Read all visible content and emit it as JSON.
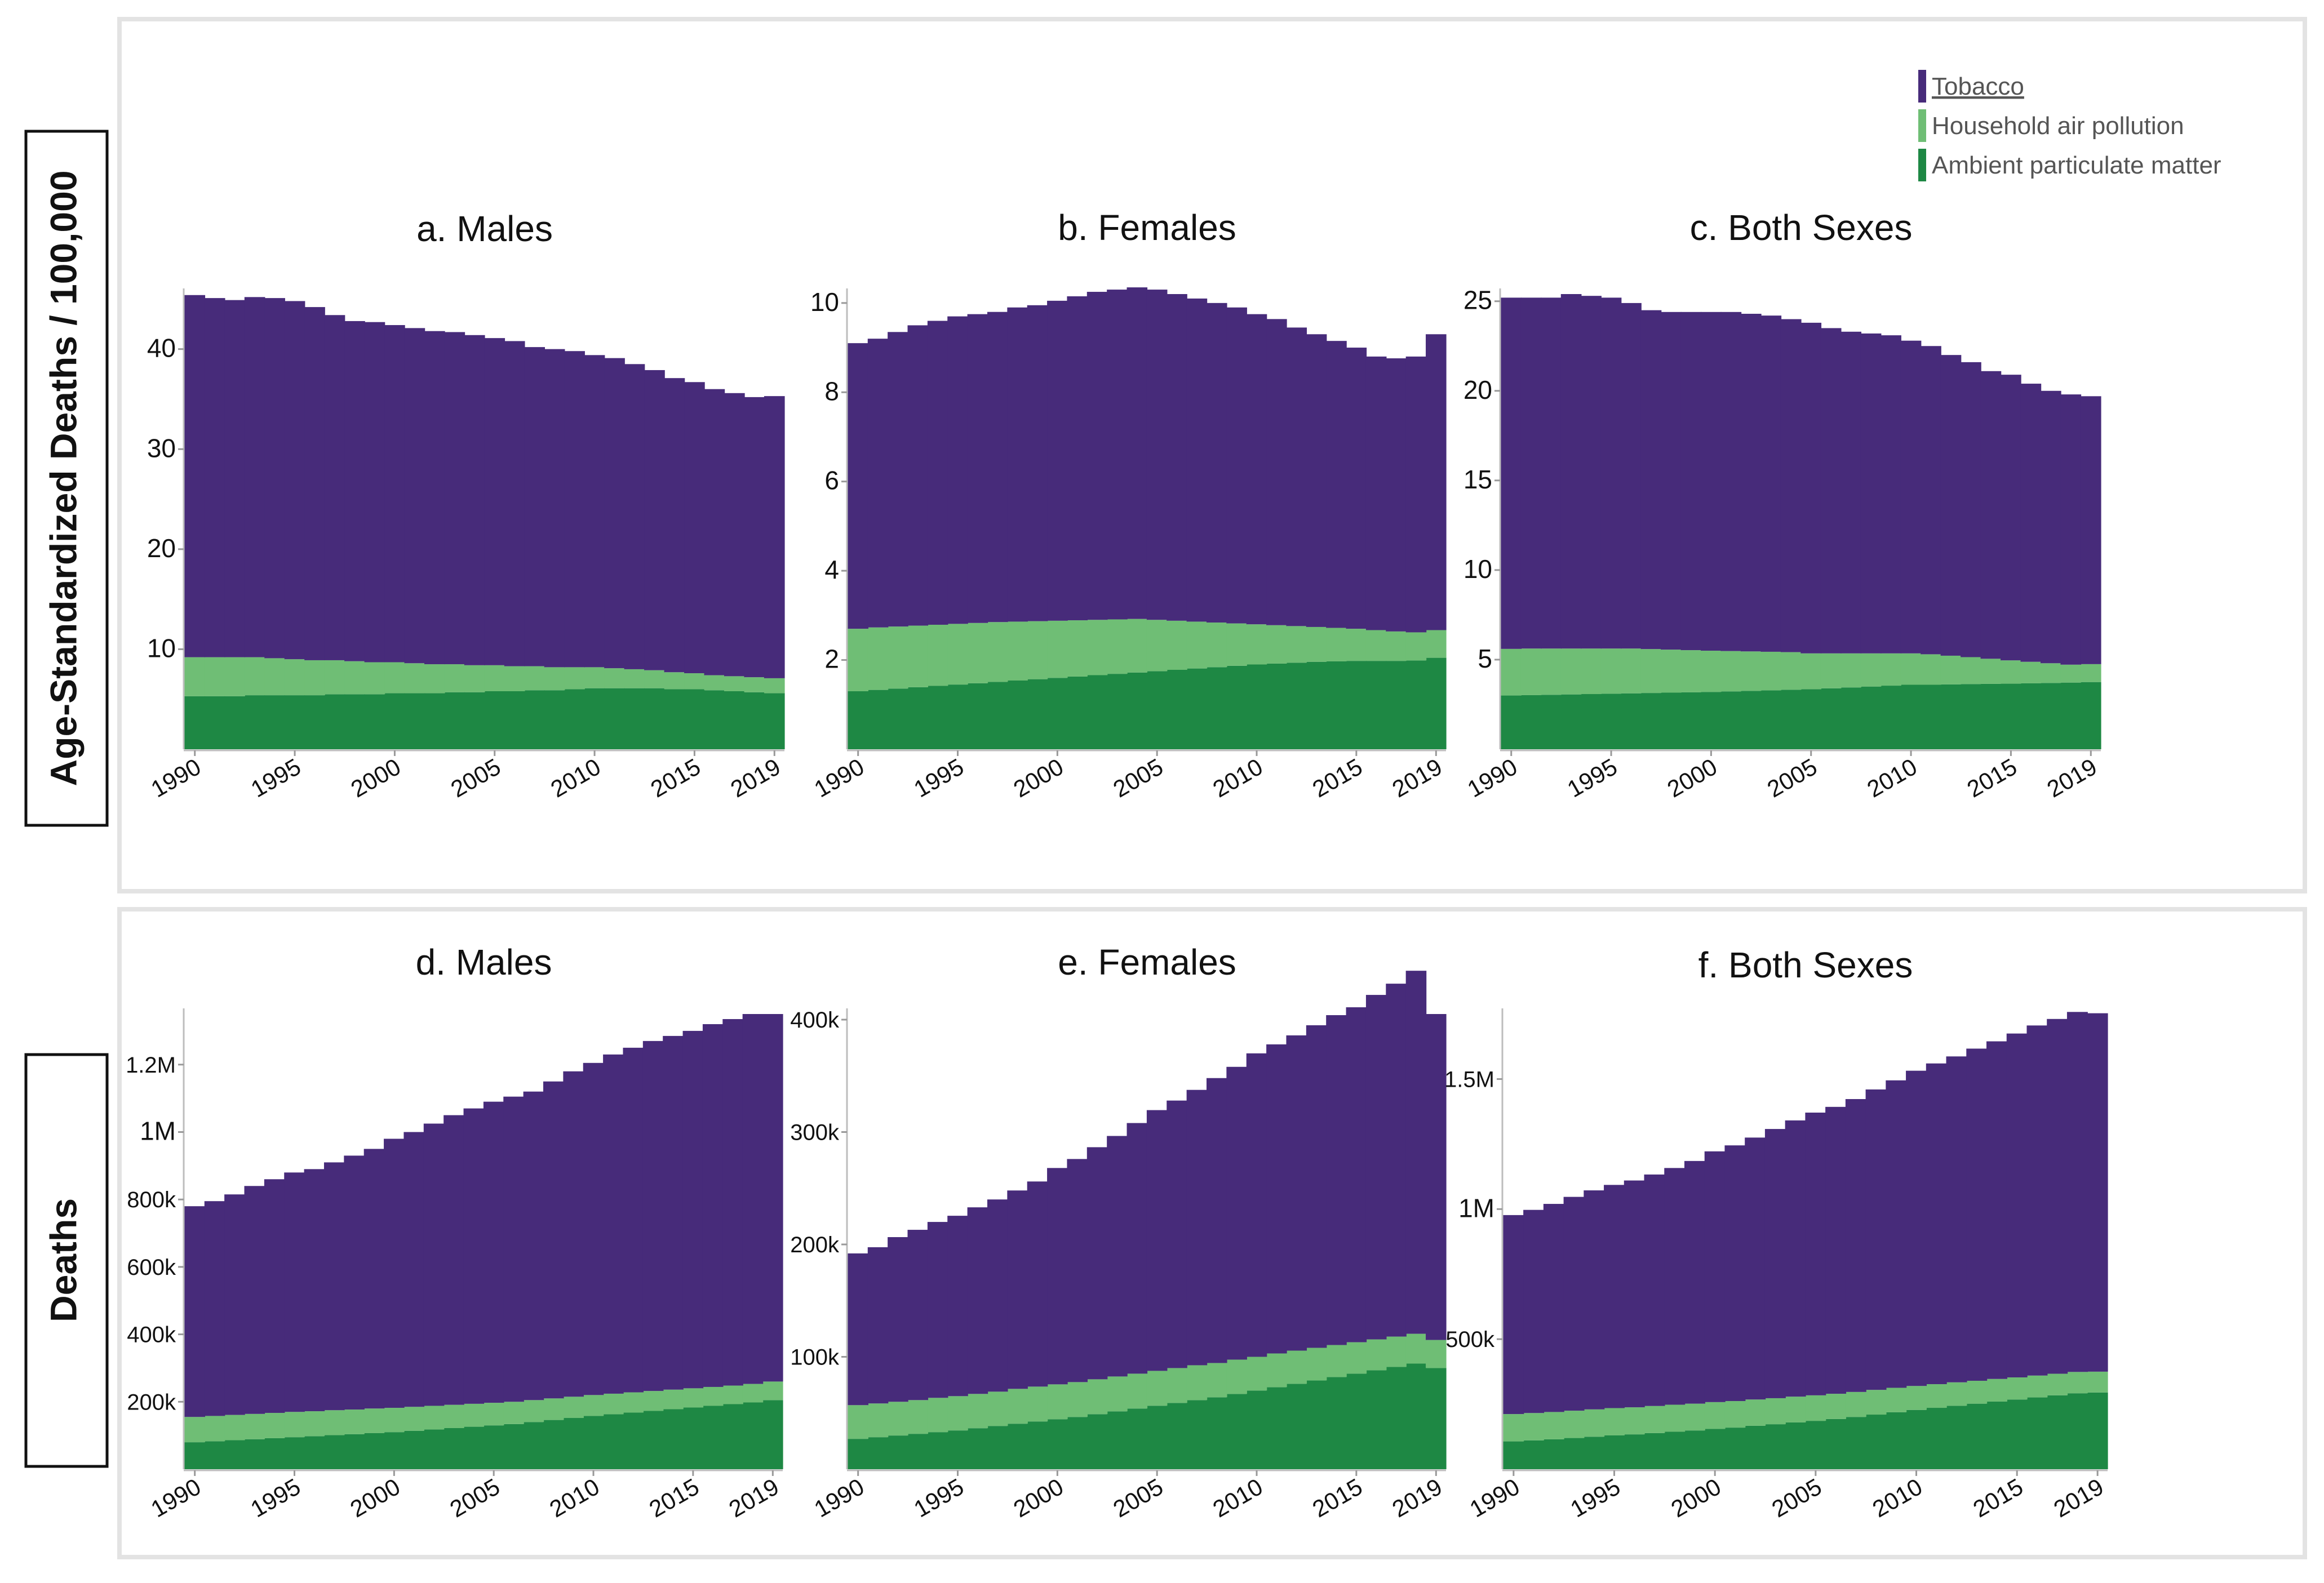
{
  "colors": {
    "tobacco": "#472b7a",
    "household": "#6fbe75",
    "ambient": "#1e8844",
    "panel_border": "#e3e3e3",
    "axis": "#bdbdbd",
    "text": "#111111",
    "legend_text": "#555555"
  },
  "legend": {
    "items": [
      {
        "label": "Tobacco",
        "color_key": "tobacco",
        "underline": true
      },
      {
        "label": "Household air pollution",
        "color_key": "household",
        "underline": false
      },
      {
        "label": "Ambient particulate matter",
        "color_key": "ambient",
        "underline": false
      }
    ]
  },
  "row_labels": {
    "top": "Age-Standardized Deaths / 100,000",
    "bottom": "Deaths"
  },
  "chart_data": [
    {
      "id": "a",
      "type": "area",
      "title": "a. Males",
      "row": "top",
      "x": [
        1990,
        1991,
        1992,
        1993,
        1994,
        1995,
        1996,
        1997,
        1998,
        1999,
        2000,
        2001,
        2002,
        2003,
        2004,
        2005,
        2006,
        2007,
        2008,
        2009,
        2010,
        2011,
        2012,
        2013,
        2014,
        2015,
        2016,
        2017,
        2018,
        2019
      ],
      "x_ticks": [
        1990,
        1995,
        2000,
        2005,
        2010,
        2015,
        2019
      ],
      "ylim": [
        0,
        45.5
      ],
      "y_ticks": [
        {
          "value": 10,
          "label": "10"
        },
        {
          "value": 20,
          "label": "20"
        },
        {
          "value": 30,
          "label": "30"
        },
        {
          "value": 40,
          "label": "40"
        }
      ],
      "series": [
        {
          "name": "Ambient particulate matter",
          "color_key": "ambient",
          "values": [
            5.3,
            5.3,
            5.3,
            5.4,
            5.4,
            5.4,
            5.4,
            5.5,
            5.5,
            5.5,
            5.6,
            5.6,
            5.6,
            5.7,
            5.7,
            5.8,
            5.8,
            5.9,
            5.9,
            6.0,
            6.1,
            6.1,
            6.1,
            6.1,
            6.0,
            6.0,
            5.9,
            5.8,
            5.7,
            5.6
          ]
        },
        {
          "name": "Household air pollution",
          "color_key": "household",
          "values": [
            3.9,
            3.9,
            3.9,
            3.8,
            3.7,
            3.6,
            3.5,
            3.4,
            3.3,
            3.2,
            3.1,
            3.0,
            2.9,
            2.8,
            2.7,
            2.6,
            2.5,
            2.4,
            2.3,
            2.2,
            2.1,
            2.0,
            1.9,
            1.8,
            1.7,
            1.6,
            1.5,
            1.5,
            1.5,
            1.5
          ]
        },
        {
          "name": "Tobacco",
          "color_key": "tobacco",
          "values": [
            36.2,
            35.9,
            35.7,
            36.0,
            36.0,
            35.8,
            35.3,
            34.5,
            34.0,
            34.0,
            33.7,
            33.5,
            33.3,
            33.2,
            33.0,
            32.7,
            32.5,
            31.9,
            31.8,
            31.6,
            31.2,
            31.0,
            30.5,
            30.0,
            29.4,
            29.1,
            28.6,
            28.3,
            28.0,
            28.2
          ]
        }
      ]
    },
    {
      "id": "b",
      "type": "area",
      "title": "b. Females",
      "row": "top",
      "x": [
        1990,
        1991,
        1992,
        1993,
        1994,
        1995,
        1996,
        1997,
        1998,
        1999,
        2000,
        2001,
        2002,
        2003,
        2004,
        2005,
        2006,
        2007,
        2008,
        2009,
        2010,
        2011,
        2012,
        2013,
        2014,
        2015,
        2016,
        2017,
        2018,
        2019
      ],
      "x_ticks": [
        1990,
        1995,
        2000,
        2005,
        2010,
        2015,
        2019
      ],
      "ylim": [
        0,
        10.2
      ],
      "y_ticks": [
        {
          "value": 2,
          "label": "2"
        },
        {
          "value": 4,
          "label": "4"
        },
        {
          "value": 6,
          "label": "6"
        },
        {
          "value": 8,
          "label": "8"
        },
        {
          "value": 10,
          "label": "10"
        }
      ],
      "series": [
        {
          "name": "Ambient particulate matter",
          "color_key": "ambient",
          "values": [
            1.3,
            1.33,
            1.36,
            1.39,
            1.42,
            1.45,
            1.48,
            1.51,
            1.54,
            1.57,
            1.6,
            1.63,
            1.66,
            1.69,
            1.72,
            1.75,
            1.78,
            1.81,
            1.84,
            1.87,
            1.9,
            1.92,
            1.94,
            1.96,
            1.97,
            1.98,
            1.98,
            1.98,
            1.99,
            2.05
          ]
        },
        {
          "name": "Household air pollution",
          "color_key": "household",
          "values": [
            1.4,
            1.4,
            1.39,
            1.38,
            1.37,
            1.36,
            1.35,
            1.34,
            1.32,
            1.3,
            1.28,
            1.26,
            1.24,
            1.22,
            1.2,
            1.15,
            1.1,
            1.05,
            1.0,
            0.95,
            0.9,
            0.86,
            0.82,
            0.78,
            0.75,
            0.72,
            0.69,
            0.66,
            0.63,
            0.62
          ]
        },
        {
          "name": "Tobacco",
          "color_key": "tobacco",
          "values": [
            6.4,
            6.47,
            6.6,
            6.73,
            6.81,
            6.89,
            6.92,
            6.95,
            7.04,
            7.08,
            7.17,
            7.26,
            7.35,
            7.39,
            7.43,
            7.4,
            7.32,
            7.24,
            7.16,
            7.08,
            6.95,
            6.86,
            6.69,
            6.56,
            6.43,
            6.3,
            6.13,
            6.12,
            6.18,
            6.63
          ]
        }
      ]
    },
    {
      "id": "c",
      "type": "area",
      "title": "c. Both Sexes",
      "row": "top",
      "x": [
        1990,
        1991,
        1992,
        1993,
        1994,
        1995,
        1996,
        1997,
        1998,
        1999,
        2000,
        2001,
        2002,
        2003,
        2004,
        2005,
        2006,
        2007,
        2008,
        2009,
        2010,
        2011,
        2012,
        2013,
        2014,
        2015,
        2016,
        2017,
        2018,
        2019
      ],
      "x_ticks": [
        1990,
        1995,
        2000,
        2005,
        2010,
        2015,
        2019
      ],
      "ylim": [
        0,
        25.4
      ],
      "y_ticks": [
        {
          "value": 5,
          "label": "5"
        },
        {
          "value": 10,
          "label": "10"
        },
        {
          "value": 15,
          "label": "15"
        },
        {
          "value": 20,
          "label": "20"
        },
        {
          "value": 25,
          "label": "25"
        }
      ],
      "series": [
        {
          "name": "Ambient particulate matter",
          "color_key": "ambient",
          "values": [
            3.0,
            3.02,
            3.04,
            3.06,
            3.08,
            3.1,
            3.12,
            3.14,
            3.16,
            3.18,
            3.2,
            3.23,
            3.26,
            3.29,
            3.32,
            3.35,
            3.4,
            3.45,
            3.5,
            3.55,
            3.6,
            3.6,
            3.62,
            3.64,
            3.65,
            3.66,
            3.68,
            3.7,
            3.72,
            3.75
          ]
        },
        {
          "name": "Household air pollution",
          "color_key": "household",
          "values": [
            2.6,
            2.6,
            2.58,
            2.56,
            2.54,
            2.52,
            2.5,
            2.45,
            2.4,
            2.35,
            2.3,
            2.25,
            2.2,
            2.15,
            2.1,
            2.0,
            1.95,
            1.9,
            1.85,
            1.8,
            1.75,
            1.7,
            1.6,
            1.5,
            1.4,
            1.3,
            1.2,
            1.1,
            1.0,
            1.0
          ]
        },
        {
          "name": "Tobacco",
          "color_key": "tobacco",
          "values": [
            19.6,
            19.58,
            19.58,
            19.78,
            19.68,
            19.58,
            19.28,
            18.91,
            18.84,
            18.87,
            18.9,
            18.92,
            18.84,
            18.76,
            18.58,
            18.45,
            18.15,
            17.95,
            17.85,
            17.75,
            17.45,
            17.2,
            16.78,
            16.46,
            16.05,
            15.94,
            15.52,
            15.2,
            15.08,
            14.95
          ]
        }
      ]
    },
    {
      "id": "d",
      "type": "area",
      "title": "d. Males",
      "row": "bottom",
      "x": [
        1990,
        1991,
        1992,
        1993,
        1994,
        1995,
        1996,
        1997,
        1998,
        1999,
        2000,
        2001,
        2002,
        2003,
        2004,
        2005,
        2006,
        2007,
        2008,
        2009,
        2010,
        2011,
        2012,
        2013,
        2014,
        2015,
        2016,
        2017,
        2018,
        2019
      ],
      "x_ticks": [
        1990,
        1995,
        2000,
        2005,
        2010,
        2015,
        2019
      ],
      "ylim": [
        0,
        1350000
      ],
      "y_ticks": [
        {
          "value": 200000,
          "label": "200k"
        },
        {
          "value": 400000,
          "label": "400k"
        },
        {
          "value": 600000,
          "label": "600k"
        },
        {
          "value": 800000,
          "label": "800k"
        },
        {
          "value": 1000000,
          "label": "1M"
        },
        {
          "value": 1200000,
          "label": "1.2M"
        }
      ],
      "series": [
        {
          "name": "Ambient particulate matter",
          "color_key": "ambient",
          "values": [
            80000,
            83000,
            86000,
            89000,
            92000,
            95000,
            98000,
            101000,
            104000,
            107000,
            110000,
            114000,
            118000,
            122000,
            126000,
            130000,
            134000,
            140000,
            146000,
            152000,
            158000,
            163000,
            168000,
            173000,
            178000,
            183000,
            188000,
            193000,
            198000,
            205000
          ]
        },
        {
          "name": "Household air pollution",
          "color_key": "household",
          "values": [
            75000,
            75000,
            75000,
            75000,
            75000,
            75000,
            74000,
            74000,
            73000,
            73000,
            72000,
            71000,
            70000,
            69000,
            68000,
            67000,
            66000,
            65000,
            64000,
            63000,
            62000,
            61000,
            60000,
            59000,
            58000,
            57000,
            56000,
            55000,
            55000,
            55000
          ]
        },
        {
          "name": "Tobacco",
          "color_key": "tobacco",
          "values": [
            625000,
            637000,
            654000,
            676000,
            693000,
            710000,
            718000,
            735000,
            753000,
            770000,
            798000,
            815000,
            837000,
            859000,
            876000,
            893000,
            905000,
            915000,
            940000,
            965000,
            985000,
            1006000,
            1022000,
            1038000,
            1049000,
            1060000,
            1076000,
            1087000,
            1097000,
            1090000
          ]
        }
      ]
    },
    {
      "id": "e",
      "type": "area",
      "title": "e. Females",
      "row": "bottom",
      "x": [
        1990,
        1991,
        1992,
        1993,
        1994,
        1995,
        1996,
        1997,
        1998,
        1999,
        2000,
        2001,
        2002,
        2003,
        2004,
        2005,
        2006,
        2007,
        2008,
        2009,
        2010,
        2011,
        2012,
        2013,
        2014,
        2015,
        2016,
        2017,
        2018,
        2019
      ],
      "x_ticks": [
        1990,
        1995,
        2000,
        2005,
        2010,
        2015,
        2019
      ],
      "ylim": [
        0,
        405000
      ],
      "y_ticks": [
        {
          "value": 100000,
          "label": "100k"
        },
        {
          "value": 200000,
          "label": "200k"
        },
        {
          "value": 300000,
          "label": "300k"
        },
        {
          "value": 400000,
          "label": "400k"
        }
      ],
      "series": [
        {
          "name": "Ambient particulate matter",
          "color_key": "ambient",
          "values": [
            27000,
            28500,
            30000,
            31500,
            33000,
            34500,
            36500,
            38500,
            40500,
            42500,
            44500,
            46500,
            49000,
            51500,
            54000,
            56500,
            59000,
            61500,
            64000,
            67000,
            70000,
            73000,
            76000,
            79000,
            82000,
            85000,
            88000,
            91000,
            94000,
            90000
          ]
        },
        {
          "name": "Household air pollution",
          "color_key": "household",
          "values": [
            30000,
            30000,
            30000,
            30000,
            30500,
            30500,
            30500,
            30500,
            31000,
            31000,
            31000,
            31000,
            31000,
            31000,
            31000,
            31000,
            31000,
            31000,
            30500,
            30500,
            30000,
            30000,
            29500,
            29000,
            28500,
            28000,
            27500,
            27000,
            26500,
            25000
          ]
        },
        {
          "name": "Tobacco",
          "color_key": "tobacco",
          "values": [
            135000,
            139000,
            146500,
            151500,
            156500,
            160500,
            166000,
            171000,
            176500,
            182500,
            192500,
            198500,
            206500,
            214000,
            223000,
            232000,
            238000,
            245000,
            253500,
            260500,
            270000,
            275000,
            280500,
            287000,
            293500,
            298000,
            306500,
            314000,
            323000,
            290000
          ]
        }
      ]
    },
    {
      "id": "f",
      "type": "area",
      "title": "f. Both Sexes",
      "row": "bottom",
      "x": [
        1990,
        1991,
        1992,
        1993,
        1994,
        1995,
        1996,
        1997,
        1998,
        1999,
        2000,
        2001,
        2002,
        2003,
        2004,
        2005,
        2006,
        2007,
        2008,
        2009,
        2010,
        2011,
        2012,
        2013,
        2014,
        2015,
        2016,
        2017,
        2018,
        2019
      ],
      "x_ticks": [
        1990,
        1995,
        2000,
        2005,
        2010,
        2015,
        2019
      ],
      "ylim": [
        0,
        1750000
      ],
      "y_ticks": [
        {
          "value": 500000,
          "label": "500k"
        },
        {
          "value": 1000000,
          "label": "1M"
        },
        {
          "value": 1500000,
          "label": "1.5M"
        }
      ],
      "series": [
        {
          "name": "Ambient particulate matter",
          "color_key": "ambient",
          "values": [
            107000,
            111000,
            115000,
            120000,
            125000,
            130000,
            134000,
            139000,
            144000,
            149000,
            155000,
            160000,
            167000,
            173000,
            180000,
            186000,
            193000,
            201000,
            210000,
            219000,
            228000,
            236000,
            244000,
            252000,
            260000,
            268000,
            276000,
            284000,
            292000,
            295000
          ]
        },
        {
          "name": "Household air pollution",
          "color_key": "household",
          "values": [
            105000,
            105000,
            105000,
            105000,
            105000,
            105000,
            104000,
            104000,
            104000,
            103000,
            103000,
            102000,
            101000,
            100000,
            99000,
            98000,
            97000,
            96000,
            95000,
            94000,
            92000,
            91000,
            90000,
            88000,
            87000,
            85000,
            84000,
            83000,
            82000,
            80000
          ]
        },
        {
          "name": "Tobacco",
          "color_key": "tobacco",
          "values": [
            765000,
            781000,
            800000,
            822000,
            842000,
            858000,
            872000,
            890000,
            910000,
            933000,
            964000,
            983000,
            1007000,
            1035000,
            1062000,
            1087000,
            1103000,
            1126000,
            1155000,
            1182000,
            1212000,
            1233000,
            1253000,
            1277000,
            1298000,
            1322000,
            1346000,
            1364000,
            1384000,
            1378000
          ]
        }
      ]
    }
  ]
}
